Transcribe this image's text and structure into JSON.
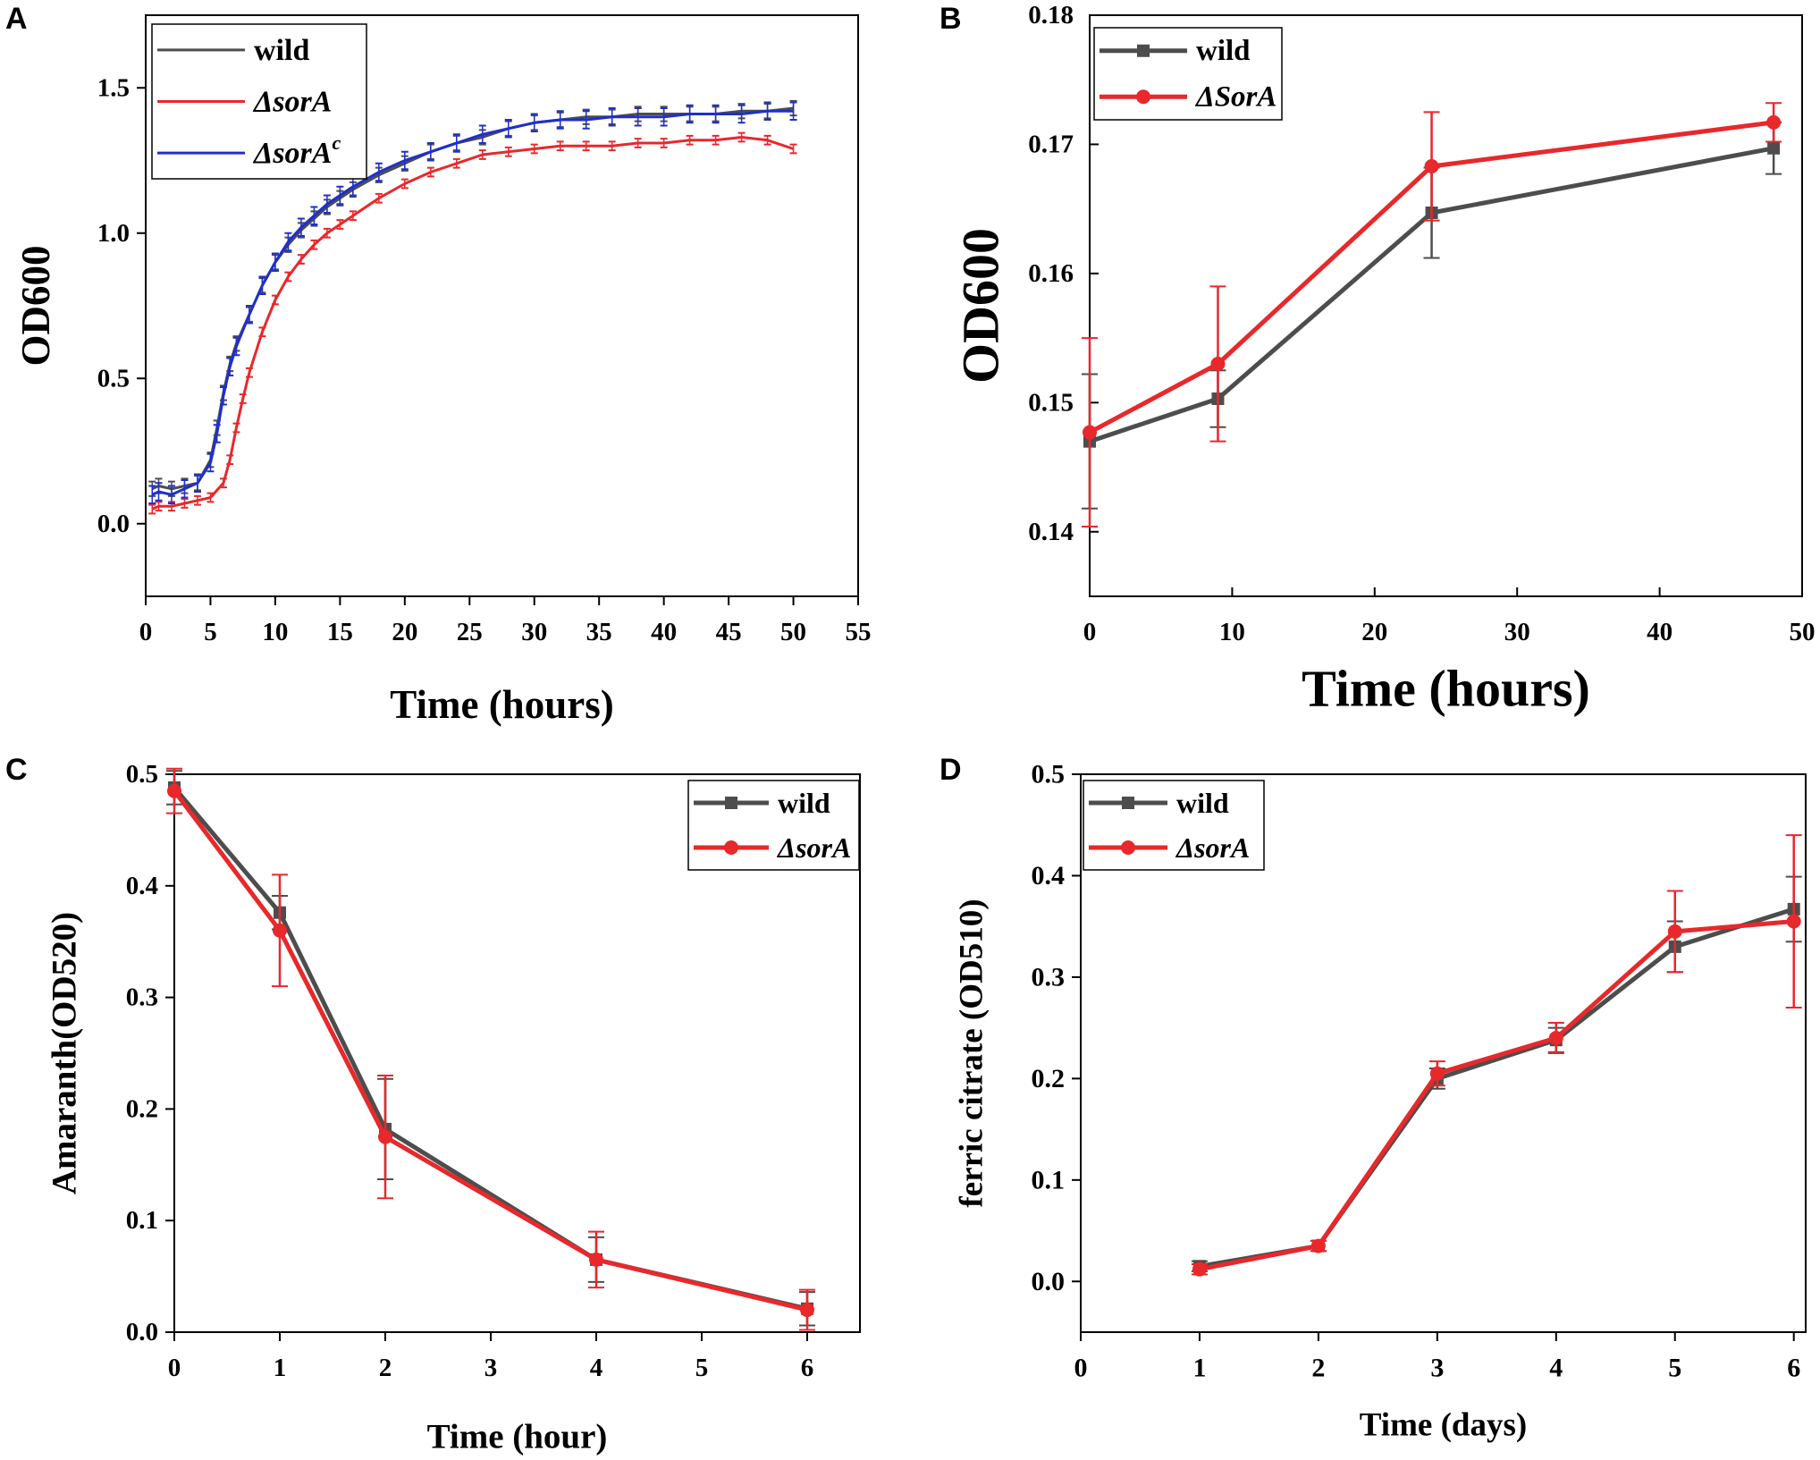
{
  "chart_data": [
    {
      "panel": "A",
      "type": "line",
      "xlabel": "Time (hours)",
      "ylabel": "OD600",
      "xlim": [
        0,
        55
      ],
      "ylim": [
        -0.25,
        1.75
      ],
      "xticks": [
        0,
        5,
        10,
        15,
        20,
        25,
        30,
        35,
        40,
        45,
        50,
        55
      ],
      "yticks": [
        0.0,
        0.5,
        1.0,
        1.5
      ],
      "ytick_labels": [
        "0.0",
        "0.5",
        "1.0",
        "1.5"
      ],
      "legend": {
        "position": "top-left",
        "boxed": true
      },
      "series": [
        {
          "name": "wild",
          "name_base": "wild",
          "name_sup": "",
          "italic": false,
          "color": "#4d4d4d",
          "x": [
            0.5,
            1,
            2,
            3,
            4,
            5,
            5.5,
            6,
            6.5,
            7,
            8,
            9,
            10,
            11,
            12,
            13,
            14,
            15,
            16,
            18,
            20,
            22,
            24,
            26,
            28,
            30,
            32,
            34,
            36,
            38,
            40,
            42,
            44,
            46,
            48,
            50
          ],
          "y": [
            0.12,
            0.13,
            0.12,
            0.13,
            0.14,
            0.22,
            0.33,
            0.45,
            0.55,
            0.62,
            0.72,
            0.82,
            0.9,
            0.96,
            1.01,
            1.05,
            1.09,
            1.12,
            1.15,
            1.2,
            1.24,
            1.28,
            1.31,
            1.33,
            1.36,
            1.38,
            1.39,
            1.4,
            1.4,
            1.41,
            1.41,
            1.41,
            1.41,
            1.42,
            1.42,
            1.43
          ],
          "err": 0.025
        },
        {
          "name": "ΔsorA",
          "name_base": "ΔsorA",
          "name_sup": "",
          "italic": true,
          "color": "#e8282b",
          "x": [
            0.5,
            1,
            2,
            3,
            4,
            5,
            6,
            6.5,
            7,
            7.5,
            8,
            9,
            10,
            11,
            12,
            13,
            14,
            15,
            16,
            18,
            20,
            22,
            24,
            26,
            28,
            30,
            32,
            34,
            36,
            38,
            40,
            42,
            44,
            46,
            48,
            50
          ],
          "y": [
            0.05,
            0.06,
            0.06,
            0.07,
            0.08,
            0.09,
            0.14,
            0.22,
            0.33,
            0.43,
            0.52,
            0.66,
            0.77,
            0.85,
            0.91,
            0.96,
            1.0,
            1.03,
            1.06,
            1.12,
            1.17,
            1.21,
            1.24,
            1.27,
            1.28,
            1.29,
            1.3,
            1.3,
            1.3,
            1.31,
            1.31,
            1.32,
            1.32,
            1.33,
            1.32,
            1.29
          ],
          "err": 0.015
        },
        {
          "name": "ΔsorAc",
          "name_base": "ΔsorA",
          "name_sup": "c",
          "italic": true,
          "color": "#1f2fcc",
          "x": [
            0.5,
            1,
            2,
            3,
            4,
            5,
            5.5,
            6,
            6.5,
            7,
            8,
            9,
            10,
            11,
            12,
            13,
            14,
            15,
            16,
            18,
            20,
            22,
            24,
            26,
            28,
            30,
            32,
            34,
            36,
            38,
            40,
            42,
            44,
            46,
            48,
            50
          ],
          "y": [
            0.1,
            0.11,
            0.1,
            0.12,
            0.14,
            0.21,
            0.31,
            0.44,
            0.54,
            0.61,
            0.72,
            0.82,
            0.9,
            0.97,
            1.02,
            1.06,
            1.1,
            1.13,
            1.16,
            1.21,
            1.25,
            1.28,
            1.31,
            1.34,
            1.36,
            1.38,
            1.39,
            1.39,
            1.4,
            1.4,
            1.4,
            1.41,
            1.41,
            1.41,
            1.42,
            1.42
          ],
          "err": 0.03
        }
      ]
    },
    {
      "panel": "B",
      "type": "line",
      "xlabel": "Time (hours)",
      "ylabel": "OD600",
      "xlim": [
        0,
        50
      ],
      "ylim": [
        0.135,
        0.18
      ],
      "xticks": [
        0,
        10,
        20,
        30,
        40,
        50
      ],
      "yticks": [
        0.14,
        0.15,
        0.16,
        0.17,
        0.18
      ],
      "ytick_labels": [
        "0.14",
        "0.15",
        "0.16",
        "0.17",
        "0.18"
      ],
      "legend": {
        "position": "top-left",
        "boxed": true
      },
      "series": [
        {
          "name": "wild",
          "name_base": "wild",
          "name_sup": "",
          "italic": false,
          "color": "#4d4d4d",
          "marker": "square",
          "x": [
            0,
            9,
            24,
            48
          ],
          "y": [
            0.147,
            0.1503,
            0.1647,
            0.1697
          ],
          "err": [
            0.0052,
            0.0022,
            0.0035,
            0.002
          ]
        },
        {
          "name": "ΔSorA",
          "name_base": "ΔSorA",
          "name_sup": "",
          "italic": true,
          "color": "#e8282b",
          "marker": "circle",
          "x": [
            0,
            9,
            24,
            48
          ],
          "y": [
            0.1477,
            0.153,
            0.1683,
            0.1717
          ],
          "err": [
            0.0073,
            0.006,
            0.0042,
            0.0015
          ]
        }
      ]
    },
    {
      "panel": "C",
      "type": "line",
      "xlabel": "Time (hour)",
      "ylabel": "Amaranth(OD520)",
      "xlim": [
        0,
        6.5
      ],
      "ylim": [
        0,
        0.5
      ],
      "xticks": [
        0,
        1,
        2,
        3,
        4,
        5,
        6
      ],
      "yticks": [
        0.0,
        0.1,
        0.2,
        0.3,
        0.4,
        0.5
      ],
      "ytick_labels": [
        "0.0",
        "0.1",
        "0.2",
        "0.3",
        "0.4",
        "0.5"
      ],
      "legend": {
        "position": "top-right",
        "boxed": true
      },
      "series": [
        {
          "name": "wild",
          "name_base": "wild",
          "name_sup": "",
          "italic": false,
          "color": "#4d4d4d",
          "marker": "square",
          "x": [
            0,
            1,
            2,
            4,
            6
          ],
          "y": [
            0.488,
            0.376,
            0.182,
            0.065,
            0.021
          ],
          "err": [
            0.015,
            0.015,
            0.045,
            0.02,
            0.015
          ]
        },
        {
          "name": "ΔsorA",
          "name_base": "ΔsorA",
          "name_sup": "",
          "italic": true,
          "color": "#e8282b",
          "marker": "circle",
          "x": [
            0,
            1,
            2,
            4,
            6
          ],
          "y": [
            0.485,
            0.36,
            0.175,
            0.065,
            0.02
          ],
          "err": [
            0.02,
            0.05,
            0.055,
            0.025,
            0.018
          ]
        }
      ]
    },
    {
      "panel": "D",
      "type": "line",
      "xlabel": "Time (days)",
      "ylabel": "ferric citrate (OD510)",
      "xlim": [
        0,
        6.1
      ],
      "ylim": [
        -0.05,
        0.5
      ],
      "xticks": [
        0,
        1,
        2,
        3,
        4,
        5,
        6
      ],
      "yticks": [
        0.0,
        0.1,
        0.2,
        0.3,
        0.4,
        0.5
      ],
      "ytick_labels": [
        "0.0",
        "0.1",
        "0.2",
        "0.3",
        "0.4",
        "0.5"
      ],
      "legend": {
        "position": "top-left",
        "boxed": true
      },
      "series": [
        {
          "name": "wild",
          "name_base": "wild",
          "name_sup": "",
          "italic": false,
          "color": "#4d4d4d",
          "marker": "square",
          "x": [
            1,
            2,
            3,
            4,
            5,
            6
          ],
          "y": [
            0.015,
            0.035,
            0.2,
            0.238,
            0.33,
            0.367
          ],
          "err": [
            0.005,
            0.005,
            0.01,
            0.012,
            0.025,
            0.032
          ]
        },
        {
          "name": "ΔsorA",
          "name_base": "ΔsorA",
          "name_sup": "",
          "italic": true,
          "color": "#e8282b",
          "marker": "circle",
          "x": [
            1,
            2,
            3,
            4,
            5,
            6
          ],
          "y": [
            0.012,
            0.035,
            0.205,
            0.24,
            0.345,
            0.355
          ],
          "err": [
            0.005,
            0.005,
            0.012,
            0.015,
            0.04,
            0.085
          ]
        }
      ]
    }
  ]
}
